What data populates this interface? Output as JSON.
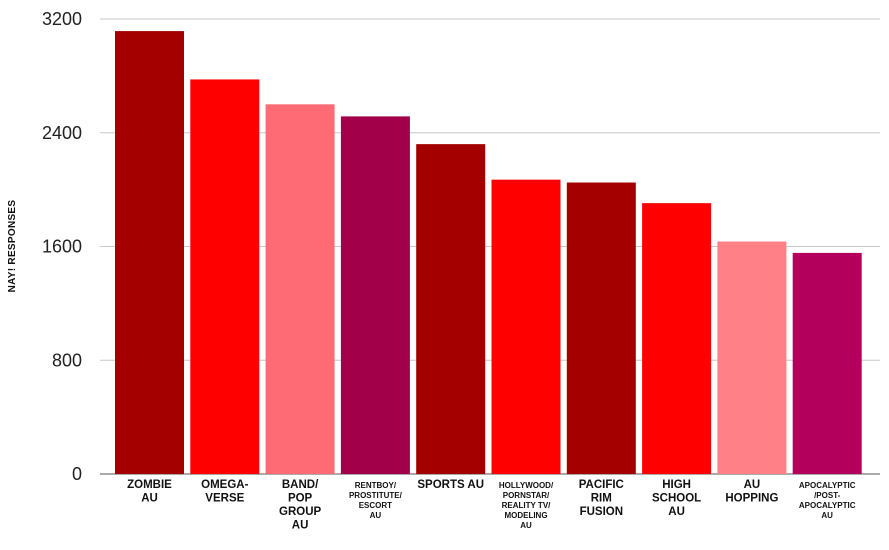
{
  "chart_data": {
    "type": "bar",
    "title": "",
    "xlabel": "",
    "ylabel": "NAY! RESPONSES",
    "ylim": [
      0,
      3200
    ],
    "yticks": [
      0,
      800,
      1600,
      2400,
      3200
    ],
    "grid": true,
    "legend": "none",
    "categories": [
      "ZOMBIE AU",
      "OMEGA-VERSE",
      "BAND/ POP GROUP AU",
      "RENTBOY/ PROSTITUTE/ ESCORT AU",
      "SPORTS AU",
      "HOLLYWOOD/ PORNSTAR/ REALITY TV/ MODELING AU",
      "PACIFIC RIM FUSION",
      "HIGH SCHOOL AU",
      "AU HOPPING",
      "APOCALYPTIC /POST-APOCALYPTIC AU"
    ],
    "category_label_lines": [
      [
        "ZOMBIE",
        "AU"
      ],
      [
        "OMEGA-",
        "VERSE"
      ],
      [
        "BAND/",
        "POP",
        "GROUP",
        "AU"
      ],
      [
        "RENTBOY/",
        "PROSTITUTE/",
        "ESCORT",
        "AU"
      ],
      [
        "SPORTS AU"
      ],
      [
        "HOLLYWOOD/",
        "PORNSTAR/",
        "REALITY TV/",
        "MODELING",
        "AU"
      ],
      [
        "PACIFIC",
        "RIM",
        "FUSION"
      ],
      [
        "HIGH",
        "SCHOOL",
        "AU"
      ],
      [
        "AU",
        "HOPPING"
      ],
      [
        "APOCALYPTIC",
        "/POST-",
        "APOCALYPTIC",
        "AU"
      ]
    ],
    "values": [
      3115,
      2775,
      2600,
      2515,
      2320,
      2070,
      2050,
      1905,
      1635,
      1555
    ],
    "colors": [
      "#a50000",
      "#ff0000",
      "#ff6b74",
      "#a3004a",
      "#a50000",
      "#ff0000",
      "#a50000",
      "#ff0000",
      "#ff8087",
      "#b3005c"
    ]
  }
}
